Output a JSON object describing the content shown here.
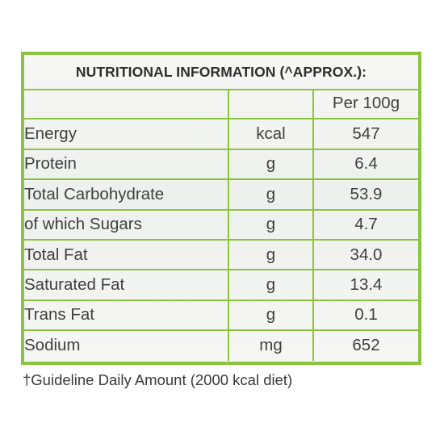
{
  "title": "NUTRITIONAL INFORMATION (^APPROX.):",
  "header": {
    "name": "",
    "unit": "",
    "value": "Per 100g"
  },
  "rows": [
    {
      "name": "Energy",
      "unit": "kcal",
      "value": "547"
    },
    {
      "name": "Protein",
      "unit": "g",
      "value": "6.4"
    },
    {
      "name": "Total Carbohydrate",
      "unit": "g",
      "value": "53.9"
    },
    {
      "name": "of which Sugars",
      "unit": "g",
      "value": "4.7"
    },
    {
      "name": "Total Fat",
      "unit": "g",
      "value": "34.0"
    },
    {
      "name": "Saturated Fat",
      "unit": "g",
      "value": "13.4"
    },
    {
      "name": "Trans Fat",
      "unit": "g",
      "value": "0.1"
    },
    {
      "name": "Sodium",
      "unit": "mg",
      "value": "652"
    }
  ],
  "footnote": "†Guideline Daily Amount (2000 kcal diet)",
  "colors": {
    "border": "#8cc43f",
    "text": "#3f3f3f"
  }
}
